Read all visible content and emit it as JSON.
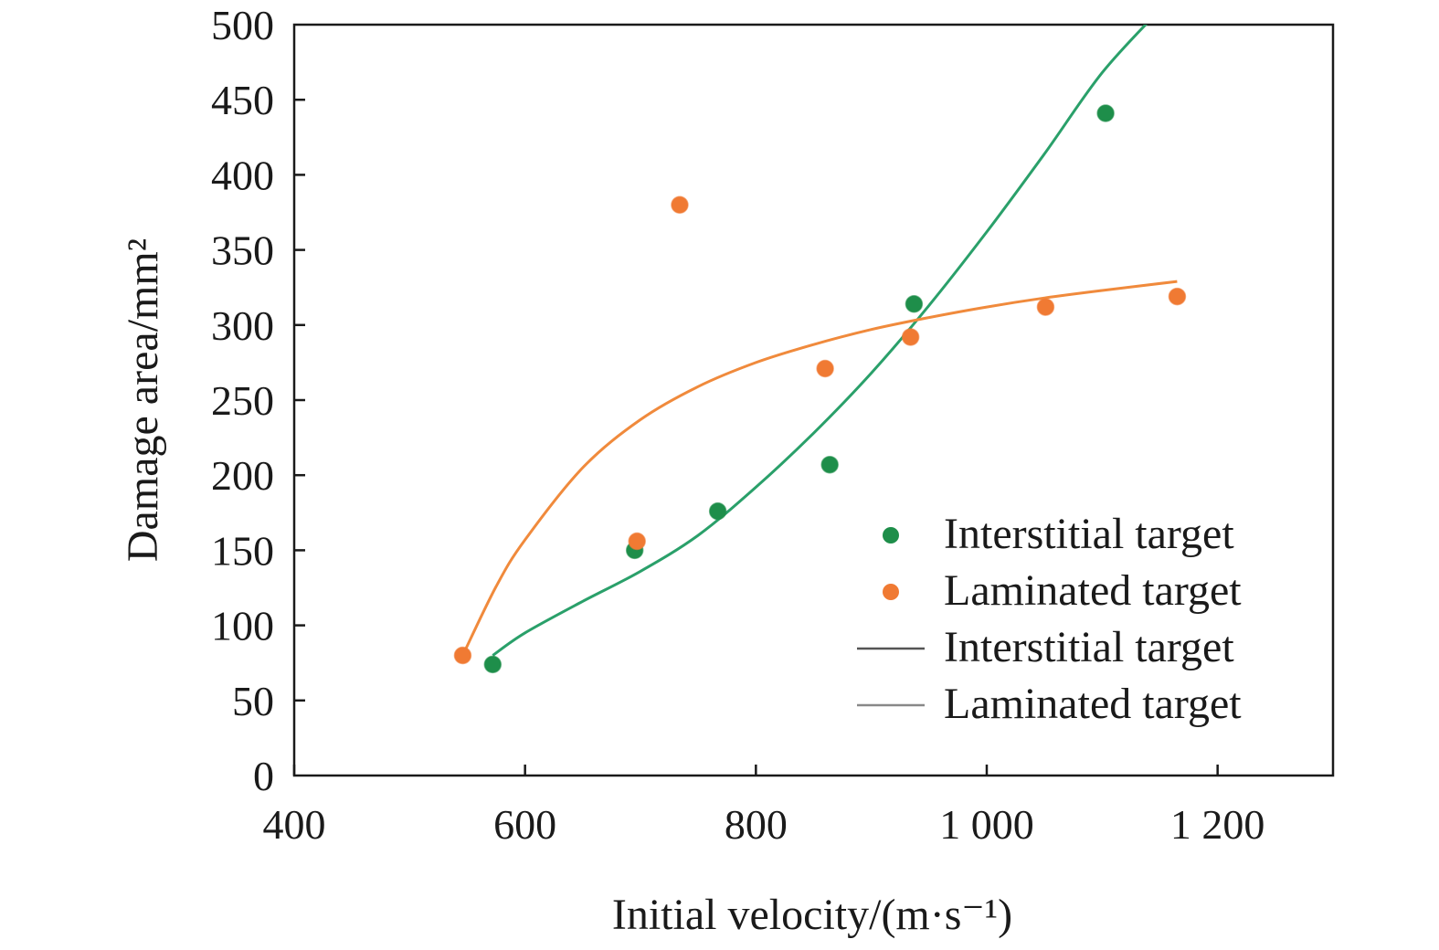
{
  "chart_data": {
    "type": "scatter",
    "xlabel": "Initial velocity/(m·s⁻¹)",
    "ylabel": "Damage area/mm²",
    "xlim": [
      400,
      1300
    ],
    "ylim": [
      0,
      500
    ],
    "x_ticks": [
      400,
      600,
      800,
      1000,
      1200
    ],
    "x_tick_labels": [
      "400",
      "600",
      "800",
      "1 000",
      "1 200"
    ],
    "y_ticks": [
      0,
      50,
      100,
      150,
      200,
      250,
      300,
      350,
      400,
      450,
      500
    ],
    "y_tick_labels": [
      "0",
      "50",
      "100",
      "150",
      "200",
      "250",
      "300",
      "350",
      "400",
      "450",
      "500"
    ],
    "grid": false,
    "legend_position": "bottom-right",
    "series": [
      {
        "name": "Interstitial target",
        "kind": "points",
        "color": "#1e8e4a",
        "x": [
          572,
          695,
          767,
          864,
          937,
          1103
        ],
        "y": [
          74,
          150,
          176,
          207,
          314,
          441
        ]
      },
      {
        "name": "Laminated target",
        "kind": "points",
        "color": "#f07a33",
        "x": [
          546,
          697,
          734,
          860,
          934,
          1051,
          1165
        ],
        "y": [
          80,
          156,
          380,
          271,
          292,
          312,
          319
        ]
      },
      {
        "name": "Interstitial target",
        "kind": "fit",
        "color": "#2aa06a",
        "x": [
          572,
          600,
          650,
          700,
          750,
          800,
          850,
          900,
          950,
          1000,
          1050,
          1100,
          1150
        ],
        "y": [
          80,
          95,
          116,
          136,
          160,
          192,
          228,
          268,
          313,
          362,
          414,
          468,
          510
        ]
      },
      {
        "name": "Laminated target",
        "kind": "fit",
        "color": "#f08a3c",
        "x": [
          546,
          575,
          600,
          650,
          700,
          750,
          800,
          850,
          900,
          950,
          1000,
          1050,
          1100,
          1165
        ],
        "y": [
          80,
          126,
          157,
          205,
          237,
          259,
          275,
          287,
          297,
          305,
          312,
          318,
          323,
          329
        ]
      }
    ]
  }
}
